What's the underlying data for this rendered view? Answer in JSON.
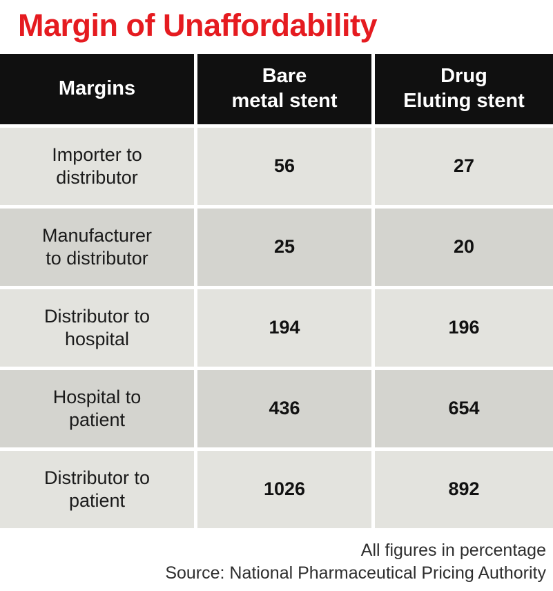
{
  "title": "Margin of Unaffordability",
  "table": {
    "headers": {
      "margins": "Margins",
      "bare_metal": "Bare\nmetal stent",
      "drug_eluting": "Drug\nEluting stent"
    },
    "rows": [
      {
        "label": "Importer to\ndistributor",
        "bare_metal": "56",
        "drug_eluting": "27"
      },
      {
        "label": "Manufacturer\nto distributor",
        "bare_metal": "25",
        "drug_eluting": "20"
      },
      {
        "label": "Distributor to\nhospital",
        "bare_metal": "194",
        "drug_eluting": "196"
      },
      {
        "label": "Hospital to\npatient",
        "bare_metal": "436",
        "drug_eluting": "654"
      },
      {
        "label": "Distributor to\npatient",
        "bare_metal": "1026",
        "drug_eluting": "892"
      }
    ]
  },
  "footer": {
    "note": "All figures in percentage",
    "source": "Source: National Pharmaceutical Pricing Authority"
  },
  "colors": {
    "title": "#e51b20",
    "header_bg": "#101010",
    "header_text": "#ffffff",
    "row_light": "#e3e3de",
    "row_dark": "#d4d4cf"
  },
  "chart_data": {
    "type": "table",
    "title": "Margin of Unaffordability",
    "columns": [
      "Margins",
      "Bare metal stent",
      "Drug Eluting stent"
    ],
    "rows": [
      [
        "Importer to distributor",
        56,
        27
      ],
      [
        "Manufacturer to distributor",
        25,
        20
      ],
      [
        "Distributor to hospital",
        194,
        196
      ],
      [
        "Hospital to patient",
        436,
        654
      ],
      [
        "Distributor to patient",
        1026,
        892
      ]
    ],
    "unit": "percentage",
    "note": "All figures in percentage",
    "source": "National Pharmaceutical Pricing Authority"
  }
}
